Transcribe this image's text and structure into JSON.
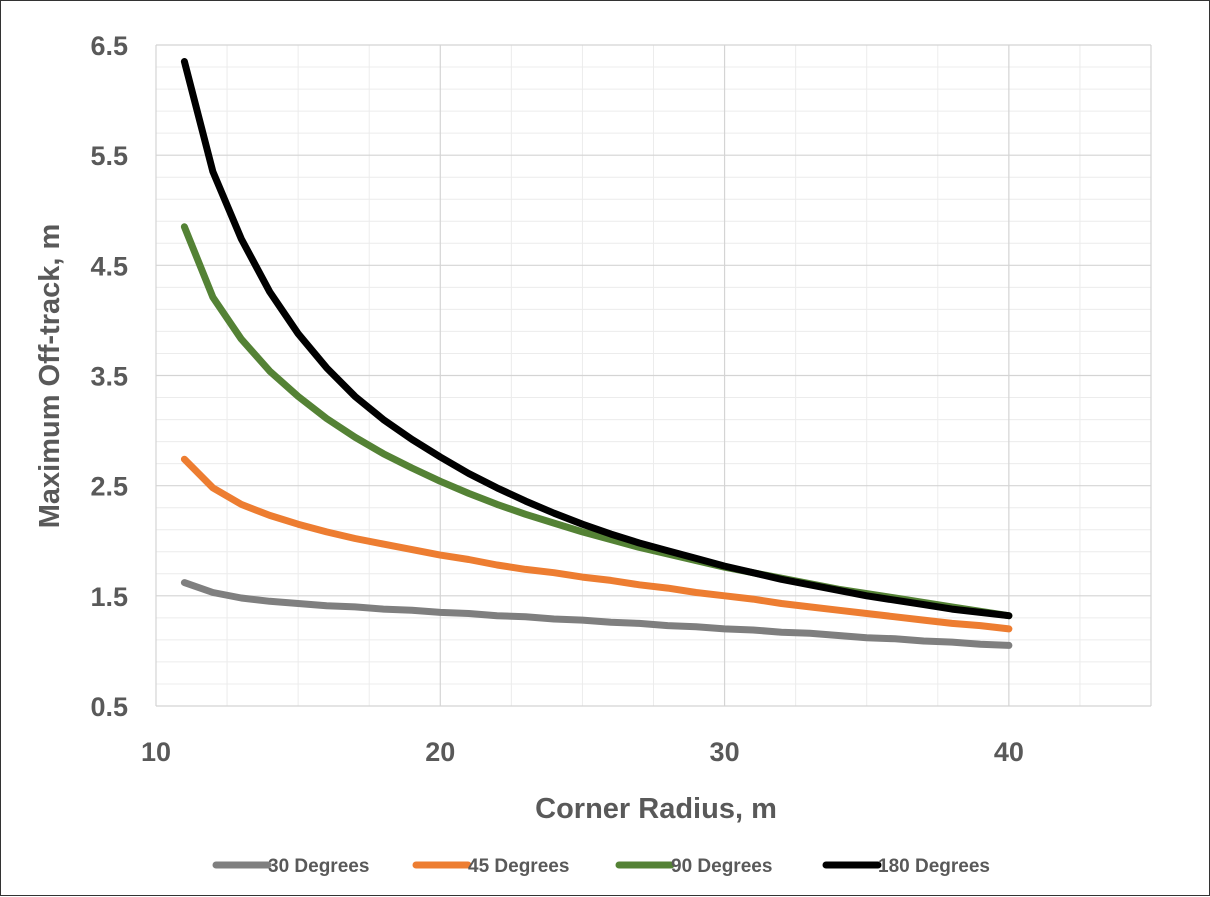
{
  "chart_data": {
    "type": "line",
    "title": "",
    "xlabel": "Corner Radius, m",
    "ylabel": "Maximum Off-track, m",
    "xlim": [
      10,
      45
    ],
    "ylim": [
      0.5,
      6.5
    ],
    "x_ticks": [
      10,
      20,
      30,
      40
    ],
    "y_ticks": [
      "0.5",
      "1.5",
      "2.5",
      "3.5",
      "4.5",
      "5.5",
      "6.5"
    ],
    "grid": true,
    "legend_position": "bottom",
    "x": [
      11,
      12,
      13,
      14,
      15,
      16,
      17,
      18,
      19,
      20,
      21,
      22,
      23,
      24,
      25,
      26,
      27,
      28,
      29,
      30,
      31,
      32,
      33,
      34,
      35,
      36,
      37,
      38,
      39,
      40
    ],
    "series": [
      {
        "name": "30 Degrees",
        "color": "#7f7f7f",
        "values": [
          1.62,
          1.53,
          1.48,
          1.45,
          1.43,
          1.41,
          1.4,
          1.38,
          1.37,
          1.35,
          1.34,
          1.32,
          1.31,
          1.29,
          1.28,
          1.26,
          1.25,
          1.23,
          1.22,
          1.2,
          1.19,
          1.17,
          1.16,
          1.14,
          1.12,
          1.11,
          1.09,
          1.08,
          1.06,
          1.05
        ]
      },
      {
        "name": "45 Degrees",
        "color": "#ed7d31",
        "values": [
          2.74,
          2.48,
          2.33,
          2.23,
          2.15,
          2.08,
          2.02,
          1.97,
          1.92,
          1.87,
          1.83,
          1.78,
          1.74,
          1.71,
          1.67,
          1.64,
          1.6,
          1.57,
          1.53,
          1.5,
          1.47,
          1.43,
          1.4,
          1.37,
          1.34,
          1.31,
          1.28,
          1.25,
          1.23,
          1.2
        ]
      },
      {
        "name": "90 Degrees",
        "color": "#548235",
        "values": [
          4.85,
          4.21,
          3.83,
          3.54,
          3.31,
          3.11,
          2.94,
          2.79,
          2.66,
          2.54,
          2.43,
          2.33,
          2.24,
          2.16,
          2.08,
          2.01,
          1.94,
          1.88,
          1.82,
          1.76,
          1.71,
          1.66,
          1.61,
          1.56,
          1.52,
          1.48,
          1.44,
          1.4,
          1.36,
          1.32
        ]
      },
      {
        "name": "180 Degrees",
        "color": "#000000",
        "values": [
          6.35,
          5.35,
          4.74,
          4.26,
          3.88,
          3.57,
          3.31,
          3.1,
          2.92,
          2.76,
          2.61,
          2.48,
          2.36,
          2.25,
          2.15,
          2.06,
          1.98,
          1.91,
          1.84,
          1.77,
          1.71,
          1.65,
          1.6,
          1.55,
          1.5,
          1.46,
          1.42,
          1.38,
          1.35,
          1.32
        ]
      }
    ]
  }
}
